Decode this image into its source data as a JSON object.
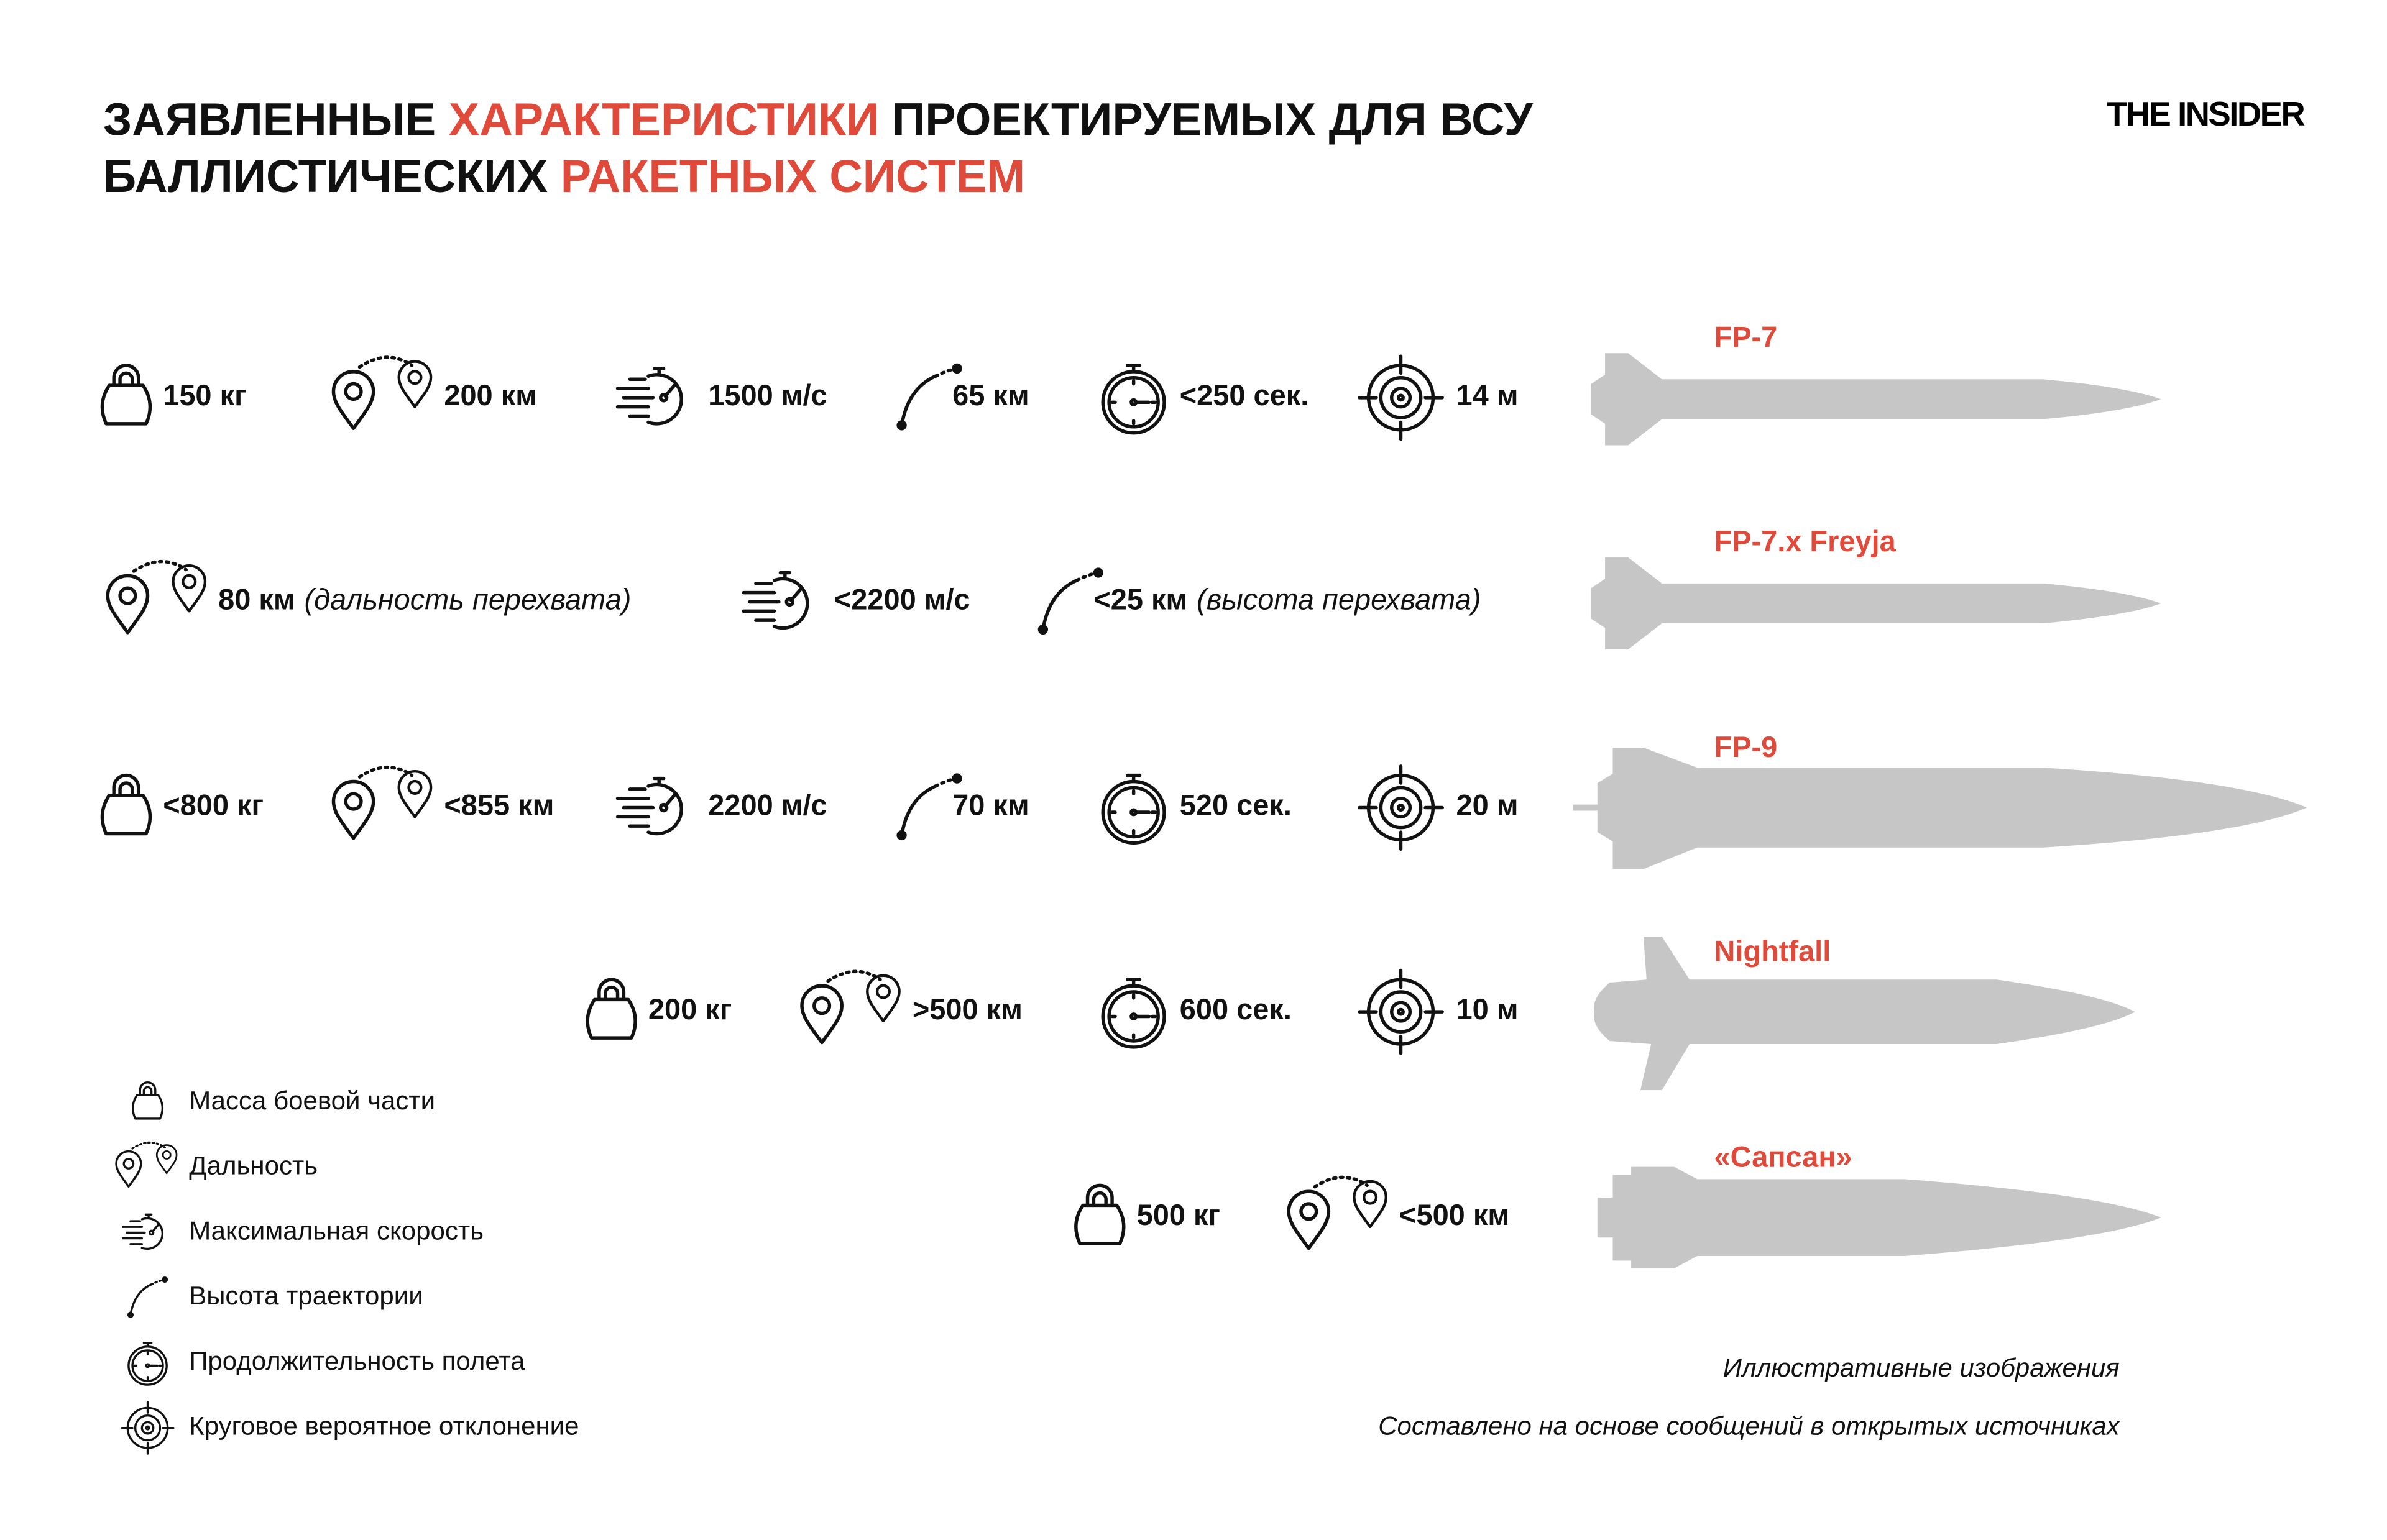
{
  "header": {
    "title_line1": [
      {
        "text": "ЗАЯВЛЕННЫЕ ",
        "accent": false
      },
      {
        "text": "ХАРАКТЕРИСТИКИ",
        "accent": true
      },
      {
        "text": " ПРОЕКТИРУЕМЫХ ДЛЯ ВСУ",
        "accent": false
      }
    ],
    "title_line2": [
      {
        "text": "БАЛЛИСТИЧЕСКИХ ",
        "accent": false
      },
      {
        "text": "РАКЕТНЫХ СИСТЕМ",
        "accent": true
      }
    ],
    "logo": "THE INSIDER"
  },
  "rows": [
    {
      "name": "FP-7",
      "items": [
        {
          "icon": "weight",
          "text": "150 кг"
        },
        {
          "icon": "range",
          "text": "200 км"
        },
        {
          "icon": "speed",
          "text": "1500 м/с"
        },
        {
          "icon": "altitude",
          "text": "65 км"
        },
        {
          "icon": "timer",
          "text": "<250 сек."
        },
        {
          "icon": "target",
          "text": "14 м"
        }
      ]
    },
    {
      "name": "FP-7.x Freyja",
      "items": [
        {
          "icon": "range",
          "text": "80 км",
          "note": "(дальность перехвата)"
        },
        {
          "icon": "speed",
          "text": "<2200 м/с"
        },
        {
          "icon": "altitude",
          "text": "<25 км",
          "note": "(высота перехвата)"
        }
      ]
    },
    {
      "name": "FP-9",
      "items": [
        {
          "icon": "weight",
          "text": "<800 кг"
        },
        {
          "icon": "range",
          "text": "<855 км"
        },
        {
          "icon": "speed",
          "text": "2200 м/с"
        },
        {
          "icon": "altitude",
          "text": "70 км"
        },
        {
          "icon": "timer",
          "text": "520 сек."
        },
        {
          "icon": "target",
          "text": "20 м"
        }
      ]
    },
    {
      "name": "Nightfall",
      "items": [
        {
          "icon": "weight",
          "text": "200 кг"
        },
        {
          "icon": "range",
          "text": ">500 км"
        },
        {
          "icon": "timer",
          "text": "600 сек."
        },
        {
          "icon": "target",
          "text": "10 м"
        }
      ]
    },
    {
      "name": "«Сапсан»",
      "items": [
        {
          "icon": "weight",
          "text": "500 кг"
        },
        {
          "icon": "range",
          "text": "<500 км"
        }
      ]
    }
  ],
  "legend": [
    {
      "icon": "weight",
      "label": "Масса боевой части"
    },
    {
      "icon": "range",
      "label": "Дальность"
    },
    {
      "icon": "speed",
      "label": "Максимальная скорость"
    },
    {
      "icon": "altitude",
      "label": "Высота траектории"
    },
    {
      "icon": "timer",
      "label": "Продолжительность полета"
    },
    {
      "icon": "target",
      "label": "Круговое вероятное отклонение"
    }
  ],
  "footnotes": [
    "Иллюстративные изображения",
    "Составлено на основе сообщений в открытых источниках"
  ]
}
